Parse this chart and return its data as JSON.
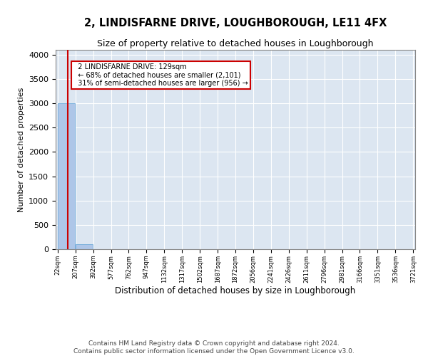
{
  "title": "2, LINDISFARNE DRIVE, LOUGHBOROUGH, LE11 4FX",
  "subtitle": "Size of property relative to detached houses in Loughborough",
  "xlabel": "Distribution of detached houses by size in Loughborough",
  "ylabel": "Number of detached properties",
  "bin_edges": [
    22,
    207,
    392,
    577,
    762,
    947,
    1132,
    1317,
    1502,
    1687,
    1872,
    2056,
    2241,
    2426,
    2611,
    2796,
    2981,
    3166,
    3351,
    3536,
    3721
  ],
  "bar_heights": [
    3000,
    100,
    5,
    3,
    2,
    2,
    2,
    1,
    1,
    1,
    1,
    1,
    1,
    1,
    1,
    1,
    1,
    1,
    1,
    1
  ],
  "bar_color": "#aec6e8",
  "bar_edge_color": "#5a9fd4",
  "property_size": 129,
  "property_line_color": "#cc0000",
  "annotation_text": "  2 LINDISFARNE DRIVE: 129sqm\n  ← 68% of detached houses are smaller (2,101)\n  31% of semi-detached houses are larger (956) →",
  "annotation_box_color": "#ffffff",
  "annotation_box_edge_color": "#cc0000",
  "ylim": [
    0,
    4100
  ],
  "yticks": [
    0,
    500,
    1000,
    1500,
    2000,
    2500,
    3000,
    3500,
    4000
  ],
  "background_color": "#dce6f1",
  "grid_color": "#ffffff",
  "footer_line1": "Contains HM Land Registry data © Crown copyright and database right 2024.",
  "footer_line2": "Contains public sector information licensed under the Open Government Licence v3.0.",
  "title_fontsize": 10.5,
  "subtitle_fontsize": 9,
  "tick_label_fontsize": 6,
  "ylabel_fontsize": 8,
  "xlabel_fontsize": 8.5,
  "footer_fontsize": 6.5
}
